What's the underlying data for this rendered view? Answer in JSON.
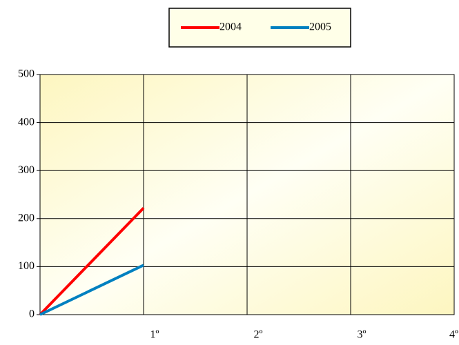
{
  "chart_data": {
    "type": "line",
    "categories": [
      null,
      "1º",
      "2º",
      "3º",
      "4º"
    ],
    "series": [
      {
        "name": "2004",
        "color": "#ff0000",
        "values": [
          0,
          222,
          null,
          null,
          null
        ]
      },
      {
        "name": "2005",
        "color": "#0080c0",
        "values": [
          0,
          103,
          null,
          null,
          null
        ]
      }
    ],
    "ylim": [
      0,
      500
    ],
    "yticks": [
      0,
      100,
      200,
      300,
      400,
      500
    ],
    "grid": true,
    "legend": "top"
  }
}
